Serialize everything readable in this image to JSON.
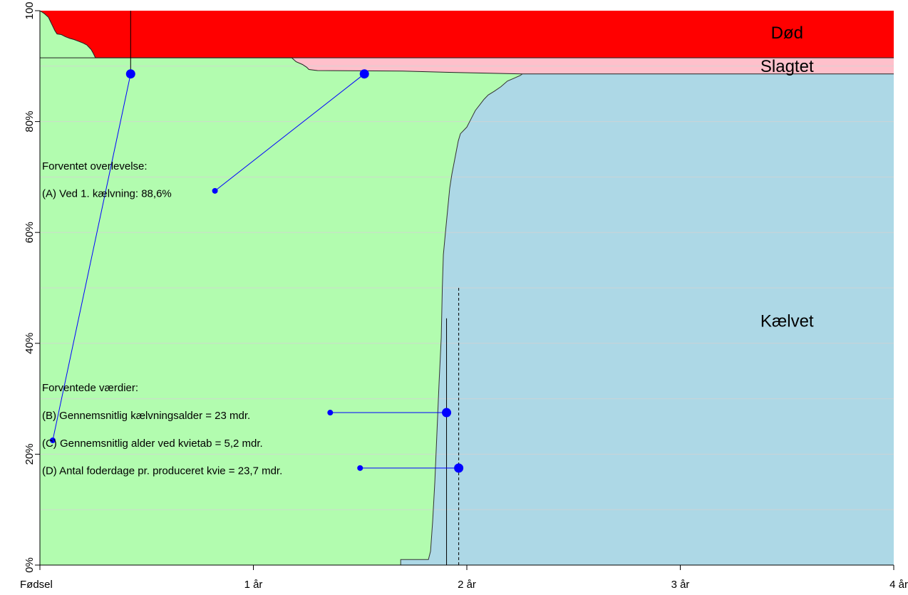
{
  "chart_data": {
    "type": "area",
    "xlim": [
      0,
      4
    ],
    "ylim": [
      0,
      100
    ],
    "x_ticks": [
      {
        "value": 0,
        "label": "Fødsel"
      },
      {
        "value": 1,
        "label": "1 år"
      },
      {
        "value": 2,
        "label": "2 år"
      },
      {
        "value": 3,
        "label": "3 år"
      },
      {
        "value": 4,
        "label": "4 år"
      }
    ],
    "y_ticks": [
      {
        "value": 0,
        "label": "0%"
      },
      {
        "value": 20,
        "label": "20%"
      },
      {
        "value": 40,
        "label": "40%"
      },
      {
        "value": 60,
        "label": "60%"
      },
      {
        "value": 80,
        "label": "80%"
      },
      {
        "value": 100,
        "label": "100"
      }
    ],
    "grid_y": [
      10,
      20,
      30,
      40,
      50,
      60,
      70,
      80,
      90
    ],
    "colors": {
      "dead": "#ff0000",
      "slaughtered": "#ffc0cb",
      "alive": "#b2fcaf",
      "calved": "#add8e6",
      "marker": "#0000ff",
      "grid": "#d3d3d3"
    },
    "region_labels": [
      {
        "key": "dead",
        "text": "Død",
        "x": 3.5,
        "y": 96
      },
      {
        "key": "slaughtered",
        "text": "Slagtet",
        "x": 3.5,
        "y": 90
      },
      {
        "key": "calved",
        "text": "Kælvet",
        "x": 3.5,
        "y": 44
      }
    ],
    "dead_curve": [
      [
        0,
        100
      ],
      [
        0.02,
        99.5
      ],
      [
        0.04,
        98.8
      ],
      [
        0.05,
        98.0
      ],
      [
        0.06,
        97.2
      ],
      [
        0.07,
        96.4
      ],
      [
        0.08,
        95.8
      ],
      [
        0.1,
        95.7
      ],
      [
        0.12,
        95.3
      ],
      [
        0.14,
        95.0
      ],
      [
        0.16,
        94.8
      ],
      [
        0.18,
        94.5
      ],
      [
        0.2,
        94.2
      ],
      [
        0.22,
        93.8
      ],
      [
        0.24,
        93.0
      ],
      [
        0.25,
        92.3
      ],
      [
        0.26,
        91.5
      ],
      [
        4,
        91.5
      ]
    ],
    "slaughter_curve": [
      [
        0,
        91.5
      ],
      [
        1.18,
        91.5
      ],
      [
        1.2,
        90.8
      ],
      [
        1.23,
        90.3
      ],
      [
        1.25,
        89.8
      ],
      [
        1.26,
        89.4
      ],
      [
        1.3,
        89.2
      ],
      [
        1.7,
        89.1
      ],
      [
        1.9,
        88.9
      ],
      [
        2.26,
        88.6
      ],
      [
        4,
        88.6
      ]
    ],
    "calving_curve": [
      [
        1.69,
        0
      ],
      [
        1.69,
        1.0
      ],
      [
        1.82,
        1.0
      ],
      [
        1.83,
        2.5
      ],
      [
        1.84,
        8
      ],
      [
        1.85,
        15
      ],
      [
        1.86,
        24
      ],
      [
        1.87,
        33
      ],
      [
        1.88,
        41
      ],
      [
        1.885,
        50
      ],
      [
        1.89,
        56
      ],
      [
        1.9,
        60
      ],
      [
        1.91,
        64
      ],
      [
        1.92,
        68
      ],
      [
        1.93,
        70.5
      ],
      [
        1.94,
        72.5
      ],
      [
        1.95,
        74.5
      ],
      [
        1.96,
        76.5
      ],
      [
        1.97,
        77.8
      ],
      [
        2.0,
        79
      ],
      [
        2.02,
        80.5
      ],
      [
        2.04,
        82
      ],
      [
        2.06,
        83
      ],
      [
        2.08,
        84
      ],
      [
        2.1,
        84.8
      ],
      [
        2.13,
        85.5
      ],
      [
        2.16,
        86.3
      ],
      [
        2.19,
        87.3
      ],
      [
        2.22,
        87.8
      ],
      [
        2.25,
        88.3
      ],
      [
        2.26,
        88.6
      ]
    ],
    "vlines": [
      {
        "x": 0.425,
        "y0": 88.6,
        "y1": 100,
        "style": "solid"
      },
      {
        "x": 1.905,
        "y0": 0,
        "y1": 44.5,
        "style": "solid"
      },
      {
        "x": 1.962,
        "y0": 0,
        "y1": 50,
        "style": "dashed"
      }
    ],
    "markers": [
      {
        "key": "A",
        "from": [
          0.82,
          67.5
        ],
        "to": [
          1.52,
          88.6
        ]
      },
      {
        "key": "C",
        "from": [
          0.06,
          22.5
        ],
        "to": [
          0.425,
          88.6
        ]
      },
      {
        "key": "B",
        "from": [
          1.36,
          27.5
        ],
        "to": [
          1.905,
          27.5
        ]
      },
      {
        "key": "D",
        "from": [
          1.5,
          17.5
        ],
        "to": [
          1.962,
          17.5
        ]
      }
    ],
    "annotations": [
      {
        "text": "Forventet overlevelse:",
        "x": 0.01,
        "y": 72
      },
      {
        "text": "(A) Ved 1. kælvning: 88,6%",
        "x": 0.01,
        "y": 67
      },
      {
        "text": "Forventede værdier:",
        "x": 0.01,
        "y": 32
      },
      {
        "text": "(B) Gennemsnitlig kælvningsalder = 23 mdr.",
        "x": 0.01,
        "y": 27
      },
      {
        "text": "(C) Gennemsnitlig alder ved kvietab = 5,2 mdr.",
        "x": 0.01,
        "y": 22
      },
      {
        "text": "(D) Antal foderdage pr. produceret kvie = 23,7 mdr.",
        "x": 0.01,
        "y": 17
      }
    ]
  }
}
